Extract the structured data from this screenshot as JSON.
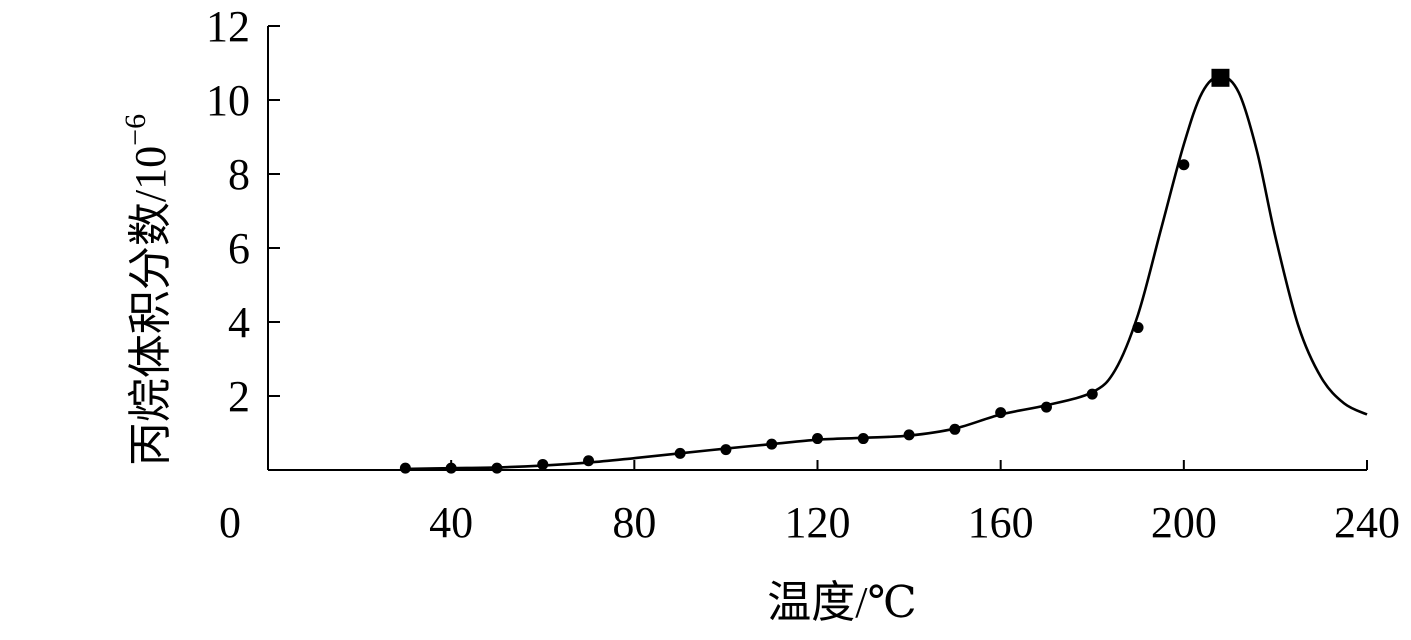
{
  "chart_data": {
    "type": "line",
    "title": "",
    "xlabel": "温度/℃",
    "ylabel": "丙烷体积分数/10",
    "ylabel_exp": "−6",
    "xlim": [
      0,
      240
    ],
    "ylim": [
      0,
      12
    ],
    "xticks": [
      0,
      40,
      80,
      120,
      160,
      200,
      240
    ],
    "xtick_labels": [
      "0",
      "40",
      "80",
      "120",
      "160",
      "200",
      "240"
    ],
    "yticks": [
      2,
      4,
      6,
      8,
      10,
      12
    ],
    "ytick_labels": [
      "2",
      "4",
      "6",
      "8",
      "10",
      "12"
    ],
    "grid": false,
    "series": [
      {
        "marker": "circle",
        "x": [
          30,
          40,
          50,
          60,
          70,
          90,
          100,
          110,
          120,
          130,
          140,
          150,
          160,
          170,
          180,
          190,
          200
        ],
        "y": [
          0.05,
          0.05,
          0.05,
          0.15,
          0.25,
          0.45,
          0.55,
          0.7,
          0.85,
          0.85,
          0.95,
          1.1,
          1.55,
          1.7,
          2.05,
          3.85,
          8.25
        ]
      },
      {
        "marker": "square",
        "x": [
          208
        ],
        "y": [
          10.6
        ]
      }
    ],
    "fitted_curve": {
      "x": [
        30,
        40,
        50,
        60,
        70,
        80,
        90,
        100,
        110,
        120,
        130,
        140,
        150,
        160,
        170,
        180,
        185,
        190,
        195,
        200,
        204,
        208,
        212,
        216,
        220,
        225,
        230,
        235,
        240
      ],
      "y": [
        0.03,
        0.05,
        0.07,
        0.12,
        0.2,
        0.32,
        0.45,
        0.58,
        0.7,
        0.82,
        0.87,
        0.93,
        1.12,
        1.5,
        1.75,
        2.1,
        2.7,
        4.2,
        6.5,
        8.8,
        10.2,
        10.65,
        10.2,
        8.6,
        6.3,
        3.9,
        2.5,
        1.8,
        1.5
      ]
    }
  }
}
